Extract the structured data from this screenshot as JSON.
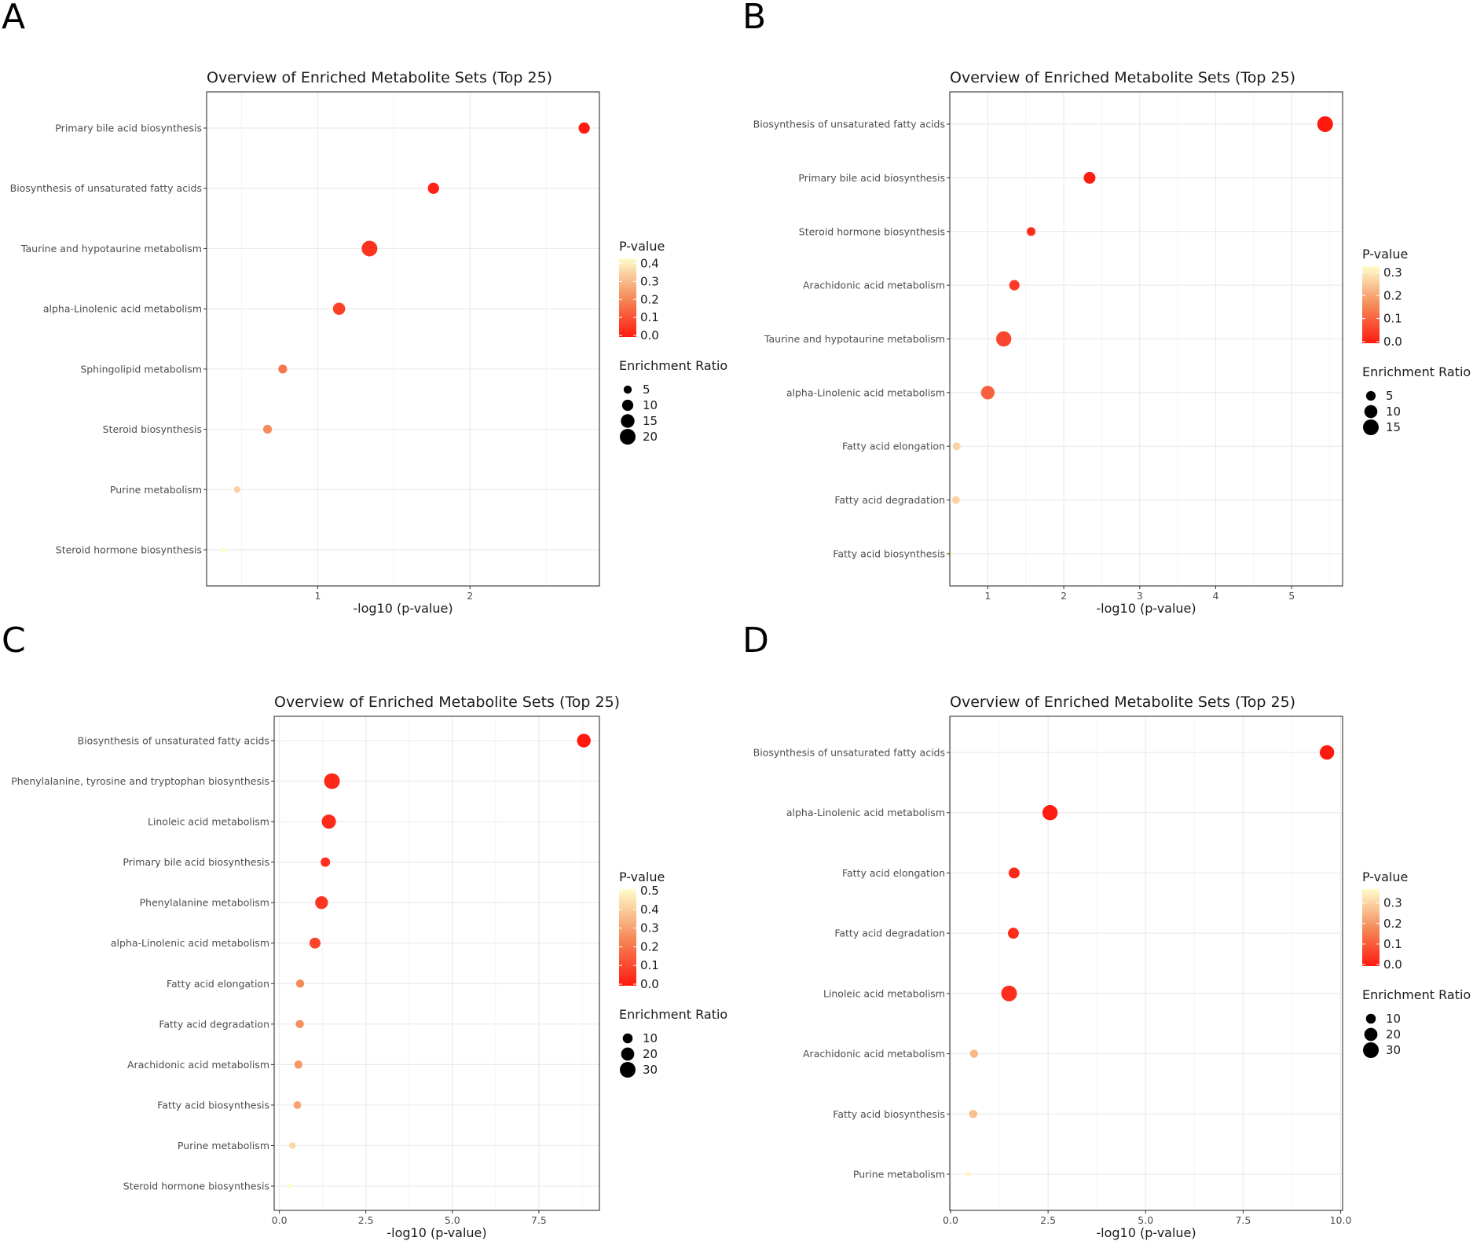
{
  "chart_data": [
    {
      "panel": "A",
      "type": "scatter",
      "title": "Overview of Enriched Metabolite Sets (Top 25)",
      "xlabel": "-log10 (p-value)",
      "xlim": [
        0.27,
        2.85
      ],
      "xticks": [
        1,
        2
      ],
      "xtick_labels": [
        "1",
        "2"
      ],
      "points": [
        {
          "label": "Primary bile acid biosynthesis",
          "x": 2.75,
          "pvalue": 0.002,
          "ratio": 10
        },
        {
          "label": "Biosynthesis of unsaturated fatty acids",
          "x": 1.76,
          "pvalue": 0.017,
          "ratio": 10
        },
        {
          "label": "Taurine and hypotaurine metabolism",
          "x": 1.34,
          "pvalue": 0.046,
          "ratio": 20
        },
        {
          "label": "alpha-Linolenic acid metabolism",
          "x": 1.14,
          "pvalue": 0.072,
          "ratio": 12
        },
        {
          "label": "Sphingolipid metabolism",
          "x": 0.77,
          "pvalue": 0.17,
          "ratio": 6
        },
        {
          "label": "Steroid biosynthesis",
          "x": 0.67,
          "pvalue": 0.21,
          "ratio": 6
        },
        {
          "label": "Purine metabolism",
          "x": 0.47,
          "pvalue": 0.34,
          "ratio": 3
        },
        {
          "label": "Steroid hormone biosynthesis",
          "x": 0.38,
          "pvalue": 0.42,
          "ratio": 2
        }
      ],
      "pvalue_legend": {
        "title": "P-value",
        "min": 0.0,
        "max": 0.42,
        "ticks": [
          0.4,
          0.3,
          0.2,
          0.1,
          0.0
        ],
        "tick_labels": [
          "0.4",
          "0.3",
          "0.2",
          "0.1",
          "0.0"
        ]
      },
      "ratio_legend": {
        "title": "Enrichment Ratio",
        "values": [
          5,
          10,
          15,
          20
        ],
        "labels": [
          "5",
          "10",
          "15",
          "20"
        ],
        "min": 2,
        "max": 20
      }
    },
    {
      "panel": "B",
      "type": "scatter",
      "title": "Overview of Enriched Metabolite Sets (Top 25)",
      "xlabel": "-log10 (p-value)",
      "xlim": [
        0.5,
        5.67
      ],
      "xticks": [
        1,
        2,
        3,
        4,
        5
      ],
      "xtick_labels": [
        "1",
        "2",
        "3",
        "4",
        "5"
      ],
      "points": [
        {
          "label": "Biosynthesis of unsaturated fatty acids",
          "x": 5.44,
          "pvalue": 0.0,
          "ratio": 15
        },
        {
          "label": "Primary bile acid biosynthesis",
          "x": 2.34,
          "pvalue": 0.005,
          "ratio": 8
        },
        {
          "label": "Steroid hormone biosynthesis",
          "x": 1.57,
          "pvalue": 0.027,
          "ratio": 4
        },
        {
          "label": "Arachidonic acid metabolism",
          "x": 1.35,
          "pvalue": 0.045,
          "ratio": 6
        },
        {
          "label": "Taurine and hypotaurine metabolism",
          "x": 1.21,
          "pvalue": 0.062,
          "ratio": 14
        },
        {
          "label": "alpha-Linolenic acid metabolism",
          "x": 1.0,
          "pvalue": 0.1,
          "ratio": 11
        },
        {
          "label": "Fatty acid elongation",
          "x": 0.59,
          "pvalue": 0.26,
          "ratio": 3
        },
        {
          "label": "Fatty acid degradation",
          "x": 0.58,
          "pvalue": 0.26,
          "ratio": 3
        },
        {
          "label": "Fatty acid biosynthesis",
          "x": 0.5,
          "pvalue": 0.32,
          "ratio": 1
        }
      ],
      "pvalue_legend": {
        "title": "P-value",
        "min": 0.0,
        "max": 0.32,
        "ticks": [
          0.3,
          0.2,
          0.1,
          0.0
        ],
        "tick_labels": [
          "0.3",
          "0.2",
          "0.1",
          "0.0"
        ]
      },
      "ratio_legend": {
        "title": "Enrichment Ratio",
        "values": [
          5,
          10,
          15
        ],
        "labels": [
          "5",
          "10",
          "15"
        ],
        "min": 1,
        "max": 15
      }
    },
    {
      "panel": "C",
      "type": "scatter",
      "title": "Overview of Enriched Metabolite Sets (Top 25)",
      "xlabel": "-log10 (p-value)",
      "xlim": [
        -0.15,
        9.25
      ],
      "xticks": [
        0,
        2.5,
        5,
        7.5
      ],
      "xtick_labels": [
        "0.0",
        "2.5",
        "5.0",
        "7.5"
      ],
      "points": [
        {
          "label": "Biosynthesis of unsaturated fatty acids",
          "x": 8.8,
          "pvalue": 0.0,
          "ratio": 22
        },
        {
          "label": "Phenylalanine, tyrosine and tryptophan biosynthesis",
          "x": 1.52,
          "pvalue": 0.03,
          "ratio": 30
        },
        {
          "label": "Linoleic acid metabolism",
          "x": 1.43,
          "pvalue": 0.037,
          "ratio": 24
        },
        {
          "label": "Primary bile acid biosynthesis",
          "x": 1.33,
          "pvalue": 0.047,
          "ratio": 9
        },
        {
          "label": "Phenylalanine metabolism",
          "x": 1.22,
          "pvalue": 0.06,
          "ratio": 19
        },
        {
          "label": "alpha-Linolenic acid metabolism",
          "x": 1.03,
          "pvalue": 0.093,
          "ratio": 13
        },
        {
          "label": "Fatty acid elongation",
          "x": 0.6,
          "pvalue": 0.25,
          "ratio": 6
        },
        {
          "label": "Fatty acid degradation",
          "x": 0.59,
          "pvalue": 0.26,
          "ratio": 6
        },
        {
          "label": "Arachidonic acid metabolism",
          "x": 0.55,
          "pvalue": 0.28,
          "ratio": 6
        },
        {
          "label": "Fatty acid biosynthesis",
          "x": 0.52,
          "pvalue": 0.3,
          "ratio": 5
        },
        {
          "label": "Purine metabolism",
          "x": 0.38,
          "pvalue": 0.42,
          "ratio": 3
        },
        {
          "label": "Steroid hormone biosynthesis",
          "x": 0.3,
          "pvalue": 0.5,
          "ratio": 1
        }
      ],
      "pvalue_legend": {
        "title": "P-value",
        "min": 0.0,
        "max": 0.5,
        "ticks": [
          0.5,
          0.4,
          0.3,
          0.2,
          0.1,
          0.0
        ],
        "tick_labels": [
          "0.5",
          "0.4",
          "0.3",
          "0.2",
          "0.1",
          "0.0"
        ]
      },
      "ratio_legend": {
        "title": "Enrichment Ratio",
        "values": [
          10,
          20,
          30
        ],
        "labels": [
          "10",
          "20",
          "30"
        ],
        "min": 1,
        "max": 30
      }
    },
    {
      "panel": "D",
      "type": "scatter",
      "title": "Overview of Enriched Metabolite Sets (Top 25)",
      "xlabel": "-log10 (p-value)",
      "xlim": [
        -0.02,
        10.05
      ],
      "xticks": [
        0,
        2.5,
        5,
        7.5,
        10
      ],
      "xtick_labels": [
        "0.0",
        "2.5",
        "5.0",
        "7.5",
        "10.0"
      ],
      "points": [
        {
          "label": "Biosynthesis of unsaturated fatty acids",
          "x": 9.65,
          "pvalue": 0.0,
          "ratio": 25
        },
        {
          "label": "alpha-Linolenic acid metabolism",
          "x": 2.55,
          "pvalue": 0.003,
          "ratio": 28
        },
        {
          "label": "Fatty acid elongation",
          "x": 1.63,
          "pvalue": 0.023,
          "ratio": 13
        },
        {
          "label": "Fatty acid degradation",
          "x": 1.61,
          "pvalue": 0.025,
          "ratio": 13
        },
        {
          "label": "Linoleic acid metabolism",
          "x": 1.5,
          "pvalue": 0.032,
          "ratio": 30
        },
        {
          "label": "Arachidonic acid metabolism",
          "x": 0.6,
          "pvalue": 0.25,
          "ratio": 6
        },
        {
          "label": "Fatty acid biosynthesis",
          "x": 0.58,
          "pvalue": 0.26,
          "ratio": 6
        },
        {
          "label": "Purine metabolism",
          "x": 0.45,
          "pvalue": 0.35,
          "ratio": 1
        }
      ],
      "pvalue_legend": {
        "title": "P-value",
        "min": 0.0,
        "max": 0.36,
        "ticks": [
          0.3,
          0.2,
          0.1,
          0.0
        ],
        "tick_labels": [
          "0.3",
          "0.2",
          "0.1",
          "0.0"
        ]
      },
      "ratio_legend": {
        "title": "Enrichment Ratio",
        "values": [
          10,
          20,
          30
        ],
        "labels": [
          "10",
          "20",
          "30"
        ],
        "min": 1,
        "max": 30
      }
    }
  ],
  "panel_labels": [
    "A",
    "B",
    "C",
    "D"
  ],
  "colors": {
    "low_p": "#ff1a10",
    "high_p": "#fffccc",
    "grid": "#ebebeb",
    "border": "#333333",
    "tick": "#4d4d4d"
  }
}
